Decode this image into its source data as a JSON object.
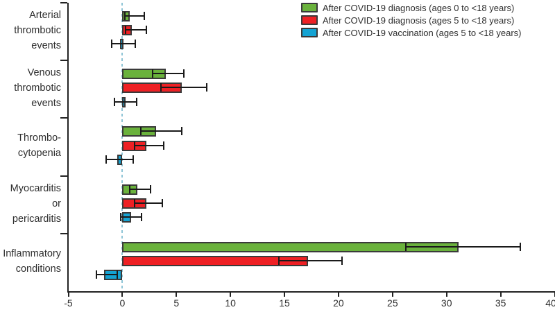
{
  "chart_data": {
    "type": "bar",
    "orientation": "horizontal",
    "title": "",
    "xlabel": "",
    "ylabel": "",
    "xlim": [
      -5,
      40
    ],
    "xticks": [
      -5,
      0,
      5,
      10,
      15,
      20,
      25,
      30,
      35,
      40
    ],
    "zero_reference_line": 0,
    "grid": false,
    "legend_position": "top-right",
    "error_bars": true,
    "categories": [
      "Arterial thrombotic events",
      "Venous thrombotic events",
      "Thrombocytopenia",
      "Myocarditis or pericarditis",
      "Inflammatory conditions"
    ],
    "category_label_lines": [
      [
        "Arterial",
        "thrombotic",
        "events"
      ],
      [
        "Venous",
        "thrombotic",
        "events"
      ],
      [
        "Thrombo-",
        "cytopenia"
      ],
      [
        "Myocarditis",
        "or",
        "pericarditis"
      ],
      [
        "Inflammatory",
        "conditions"
      ]
    ],
    "series": [
      {
        "name": "After COVID-19 diagnosis (ages 0 to <18 years)",
        "color": "#6ab23c",
        "values": [
          0.7,
          4.0,
          3.1,
          1.4,
          31.1
        ],
        "ci_low": [
          0.2,
          2.8,
          1.7,
          0.7,
          26.2
        ],
        "ci_high": [
          2.0,
          5.7,
          5.5,
          2.6,
          36.8
        ]
      },
      {
        "name": "After COVID-19 diagnosis (ages 5 to <18 years)",
        "color": "#ee2024",
        "values": [
          0.85,
          5.5,
          2.2,
          2.2,
          17.2
        ],
        "ci_low": [
          0.3,
          3.6,
          1.1,
          1.1,
          14.5
        ],
        "ci_high": [
          2.2,
          7.8,
          3.8,
          3.7,
          20.3
        ]
      },
      {
        "name": "After COVID-19 vaccination (ages 5 to <18 years)",
        "color": "#14a3d3",
        "values": [
          -0.2,
          0.3,
          -0.5,
          0.8,
          -1.7
        ],
        "ci_low": [
          -1.0,
          -0.7,
          -1.5,
          -0.15,
          -2.4
        ],
        "ci_high": [
          1.2,
          1.3,
          1.0,
          1.75,
          -0.5
        ]
      }
    ],
    "colors": {
      "bar_border": "#3a3a3a",
      "whisker": "#1a1a1a",
      "zero_line": "#8ec4d6",
      "axis": "#222222",
      "text": "#2e2e2e"
    }
  }
}
